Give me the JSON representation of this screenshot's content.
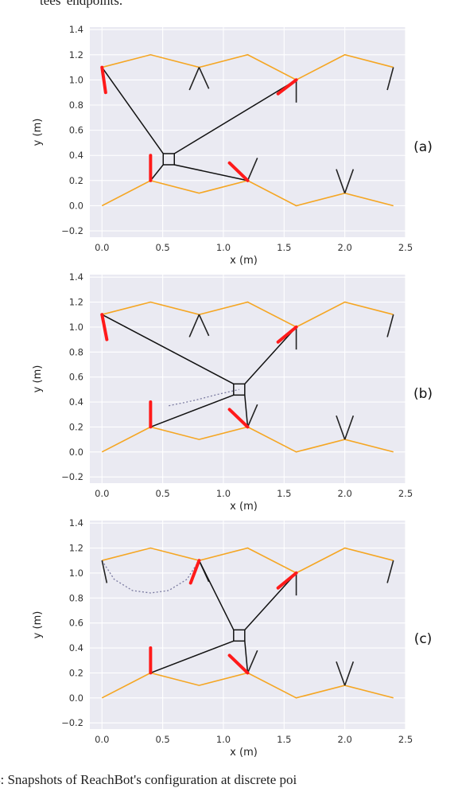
{
  "page": {
    "top_text": "tees' endpoints.",
    "bottom_text": "4: Snapshots of ReachBot's configuration at discrete poi"
  },
  "colors": {
    "terrain": "#f5a623",
    "active_leg": "#ff1a1a",
    "passive_leg": "#222222",
    "background": "#eaeaf2"
  },
  "chart_data": [
    {
      "type": "line",
      "label": "(a)",
      "xlabel": "x (m)",
      "ylabel": "y (m)",
      "xlim": [
        -0.1,
        2.5
      ],
      "ylim": [
        -0.25,
        1.42
      ],
      "xticks": [
        "0.0",
        "0.5",
        "1.0",
        "1.5",
        "2.0",
        "2.5"
      ],
      "yticks": [
        "−0.2",
        "0.0",
        "0.2",
        "0.4",
        "0.6",
        "0.8",
        "1.0",
        "1.2",
        "1.4"
      ],
      "terrain_top": {
        "x": [
          0,
          0.4,
          0.8,
          1.2,
          1.6,
          2.0,
          2.4
        ],
        "y": [
          1.1,
          1.2,
          1.1,
          1.2,
          1.0,
          1.2,
          1.1
        ]
      },
      "terrain_bottom": {
        "x": [
          0,
          0.4,
          0.8,
          1.2,
          1.6,
          2.0,
          2.4
        ],
        "y": [
          0.0,
          0.2,
          0.1,
          0.2,
          0.0,
          0.1,
          0.0
        ]
      },
      "body": {
        "x": 0.55,
        "y": 0.37
      },
      "cables": [
        [
          0.0,
          1.1
        ],
        [
          1.6,
          1.0
        ],
        [
          0.4,
          0.2
        ],
        [
          1.2,
          0.2
        ]
      ],
      "red_legs": [
        [
          [
            0.0,
            1.1
          ],
          [
            0.03,
            0.9
          ]
        ],
        [
          [
            1.6,
            1.0
          ],
          [
            1.45,
            0.89
          ]
        ],
        [
          [
            0.4,
            0.2
          ],
          [
            0.4,
            0.4
          ]
        ],
        [
          [
            1.2,
            0.2
          ],
          [
            1.05,
            0.34
          ]
        ]
      ],
      "black_legs": [
        [
          [
            0.8,
            1.1
          ],
          [
            0.72,
            0.92
          ]
        ],
        [
          [
            0.8,
            1.1
          ],
          [
            0.88,
            0.93
          ]
        ],
        [
          [
            1.6,
            1.0
          ],
          [
            1.6,
            0.82
          ]
        ],
        [
          [
            2.4,
            1.1
          ],
          [
            2.35,
            0.92
          ]
        ],
        [
          [
            1.2,
            0.2
          ],
          [
            1.28,
            0.38
          ]
        ],
        [
          [
            2.0,
            0.1
          ],
          [
            1.93,
            0.29
          ]
        ],
        [
          [
            2.0,
            0.1
          ],
          [
            2.07,
            0.29
          ]
        ]
      ],
      "trajectory": []
    },
    {
      "type": "line",
      "label": "(b)",
      "xlabel": "x (m)",
      "ylabel": "y (m)",
      "xlim": [
        -0.1,
        2.5
      ],
      "ylim": [
        -0.25,
        1.42
      ],
      "xticks": [
        "0.0",
        "0.5",
        "1.0",
        "1.5",
        "2.0",
        "2.5"
      ],
      "yticks": [
        "−0.2",
        "0.0",
        "0.2",
        "0.4",
        "0.6",
        "0.8",
        "1.0",
        "1.2",
        "1.4"
      ],
      "terrain_top": {
        "x": [
          0,
          0.4,
          0.8,
          1.2,
          1.6,
          2.0,
          2.4
        ],
        "y": [
          1.1,
          1.2,
          1.1,
          1.2,
          1.0,
          1.2,
          1.1
        ]
      },
      "terrain_bottom": {
        "x": [
          0,
          0.4,
          0.8,
          1.2,
          1.6,
          2.0,
          2.4
        ],
        "y": [
          0.0,
          0.2,
          0.1,
          0.2,
          0.0,
          0.1,
          0.0
        ]
      },
      "body": {
        "x": 1.13,
        "y": 0.5
      },
      "cables": [
        [
          0.0,
          1.1
        ],
        [
          1.6,
          1.0
        ],
        [
          0.4,
          0.2
        ],
        [
          1.2,
          0.2
        ]
      ],
      "red_legs": [
        [
          [
            0.0,
            1.1
          ],
          [
            0.04,
            0.9
          ]
        ],
        [
          [
            1.6,
            1.0
          ],
          [
            1.45,
            0.88
          ]
        ],
        [
          [
            0.4,
            0.2
          ],
          [
            0.4,
            0.4
          ]
        ],
        [
          [
            1.2,
            0.2
          ],
          [
            1.05,
            0.34
          ]
        ]
      ],
      "black_legs": [
        [
          [
            0.8,
            1.1
          ],
          [
            0.72,
            0.92
          ]
        ],
        [
          [
            0.8,
            1.1
          ],
          [
            0.88,
            0.93
          ]
        ],
        [
          [
            1.6,
            1.0
          ],
          [
            1.6,
            0.82
          ]
        ],
        [
          [
            2.4,
            1.1
          ],
          [
            2.35,
            0.92
          ]
        ],
        [
          [
            1.2,
            0.2
          ],
          [
            1.28,
            0.38
          ]
        ],
        [
          [
            2.0,
            0.1
          ],
          [
            1.93,
            0.29
          ]
        ],
        [
          [
            2.0,
            0.1
          ],
          [
            2.07,
            0.29
          ]
        ]
      ],
      "trajectory": [
        [
          0.55,
          0.37
        ],
        [
          0.75,
          0.41
        ],
        [
          0.95,
          0.46
        ],
        [
          1.13,
          0.5
        ]
      ]
    },
    {
      "type": "line",
      "label": "(c)",
      "xlabel": "x (m)",
      "ylabel": "y (m)",
      "xlim": [
        -0.1,
        2.5
      ],
      "ylim": [
        -0.25,
        1.42
      ],
      "xticks": [
        "0.0",
        "0.5",
        "1.0",
        "1.5",
        "2.0",
        "2.5"
      ],
      "yticks": [
        "−0.2",
        "0.0",
        "0.2",
        "0.4",
        "0.6",
        "0.8",
        "1.0",
        "1.2",
        "1.4"
      ],
      "terrain_top": {
        "x": [
          0,
          0.4,
          0.8,
          1.2,
          1.6,
          2.0,
          2.4
        ],
        "y": [
          1.1,
          1.2,
          1.1,
          1.2,
          1.0,
          1.2,
          1.1
        ]
      },
      "terrain_bottom": {
        "x": [
          0,
          0.4,
          0.8,
          1.2,
          1.6,
          2.0,
          2.4
        ],
        "y": [
          0.0,
          0.2,
          0.1,
          0.2,
          0.0,
          0.1,
          0.0
        ]
      },
      "body": {
        "x": 1.13,
        "y": 0.5
      },
      "cables": [
        [
          0.8,
          1.1
        ],
        [
          1.6,
          1.0
        ],
        [
          0.4,
          0.2
        ],
        [
          1.2,
          0.2
        ]
      ],
      "red_legs": [
        [
          [
            0.8,
            1.1
          ],
          [
            0.73,
            0.92
          ]
        ],
        [
          [
            1.6,
            1.0
          ],
          [
            1.45,
            0.88
          ]
        ],
        [
          [
            0.4,
            0.2
          ],
          [
            0.4,
            0.4
          ]
        ],
        [
          [
            1.2,
            0.2
          ],
          [
            1.05,
            0.34
          ]
        ]
      ],
      "black_legs": [
        [
          [
            0.0,
            1.1
          ],
          [
            0.04,
            0.92
          ]
        ],
        [
          [
            0.8,
            1.1
          ],
          [
            0.88,
            0.93
          ]
        ],
        [
          [
            1.6,
            1.0
          ],
          [
            1.6,
            0.82
          ]
        ],
        [
          [
            2.4,
            1.1
          ],
          [
            2.35,
            0.92
          ]
        ],
        [
          [
            1.2,
            0.2
          ],
          [
            1.28,
            0.38
          ]
        ],
        [
          [
            2.0,
            0.1
          ],
          [
            1.93,
            0.29
          ]
        ],
        [
          [
            2.0,
            0.1
          ],
          [
            2.07,
            0.29
          ]
        ]
      ],
      "trajectory": [
        [
          0.0,
          1.1
        ],
        [
          0.1,
          0.95
        ],
        [
          0.25,
          0.86
        ],
        [
          0.4,
          0.84
        ],
        [
          0.55,
          0.86
        ],
        [
          0.7,
          0.95
        ],
        [
          0.8,
          1.1
        ]
      ]
    }
  ]
}
